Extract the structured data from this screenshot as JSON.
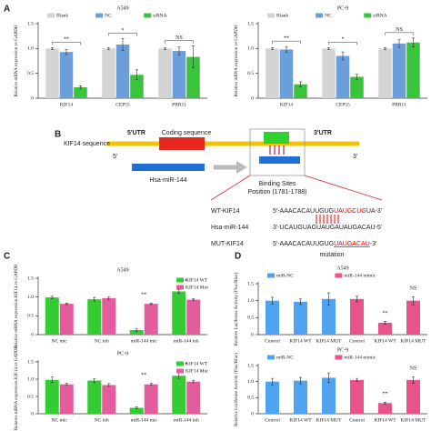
{
  "panel_labels": [
    "A",
    "B",
    "C",
    "D"
  ],
  "chart_data": [
    {
      "type": "bar",
      "title": "A549",
      "ylabel": "Relative mRNA expression vs GAPDH",
      "categories": [
        "KIF14",
        "CEP55",
        "PRR11"
      ],
      "series": [
        {
          "name": "Blank",
          "color": "#d4d4d4",
          "values": [
            1.0,
            1.0,
            1.0
          ],
          "errors": [
            0.02,
            0.02,
            0.02
          ]
        },
        {
          "name": "NC",
          "color": "#6b9fdb",
          "values": [
            0.93,
            1.08,
            0.95
          ],
          "errors": [
            0.05,
            0.12,
            0.08
          ]
        },
        {
          "name": "siRNA",
          "color": "#39c43b",
          "values": [
            0.22,
            0.47,
            0.83
          ],
          "errors": [
            0.03,
            0.1,
            0.22
          ]
        }
      ],
      "annotations": [
        "**",
        "*",
        "NS"
      ],
      "legend": "top",
      "ylim": [
        0,
        1.5
      ],
      "yticks": [
        0,
        0.5,
        {
          "value": 1,
          "label": "1.0"
        },
        1.5
      ]
    },
    {
      "type": "bar",
      "title": "PC-9",
      "ylabel": "Relative mRNA expression vs GAPDH",
      "categories": [
        "KIF14",
        "CEP55",
        "PRR11"
      ],
      "series": [
        {
          "name": "Blank",
          "color": "#d4d4d4",
          "values": [
            1.0,
            1.0,
            1.0
          ],
          "errors": [
            0.02,
            0.02,
            0.02
          ]
        },
        {
          "name": "NC",
          "color": "#6b9fdb",
          "values": [
            0.98,
            0.85,
            1.1
          ],
          "errors": [
            0.06,
            0.08,
            0.08
          ]
        },
        {
          "name": "siRNA",
          "color": "#39c43b",
          "values": [
            0.28,
            0.43,
            1.12
          ],
          "errors": [
            0.05,
            0.05,
            0.09
          ]
        }
      ],
      "annotations": [
        "**",
        "*",
        "NS"
      ],
      "legend": "top",
      "ylim": [
        0,
        1.5
      ],
      "yticks": [
        0,
        0.5,
        {
          "value": 1,
          "label": "1.0"
        },
        1.5
      ]
    },
    {
      "type": "bar",
      "title": "A549",
      "ylabel": "Relative mRNA expression KIF14 vs GAPDH",
      "categories": [
        "NC mic",
        "NC inh",
        "miR-144 mic",
        "miR-144 inh"
      ],
      "series": [
        {
          "name": "KIF14 WT",
          "color": "#33cc33",
          "values": [
            0.99,
            0.94,
            0.12,
            1.15
          ],
          "errors": [
            0.03,
            0.05,
            0.03,
            0.05
          ]
        },
        {
          "name": "KIF14 Mut",
          "color": "#e35d9c",
          "values": [
            0.82,
            0.97,
            0.82,
            0.93
          ],
          "errors": [
            0.02,
            0.04,
            0.02,
            0.03
          ]
        }
      ],
      "annotations": [
        null,
        null,
        "**",
        "*"
      ],
      "legend": "upper right",
      "ylim": [
        0,
        1.5
      ],
      "yticks": [
        0,
        0.5,
        {
          "value": 1,
          "label": "1.0"
        },
        1.5
      ]
    },
    {
      "type": "bar",
      "title": "PC-9",
      "ylabel": "Relative mRNA expression KIF14 vs GAPDH",
      "categories": [
        "NC mic",
        "NC inh",
        "miR-144 mic",
        "miR-144 inh"
      ],
      "series": [
        {
          "name": "KIF14 WT",
          "color": "#33cc33",
          "values": [
            0.98,
            0.96,
            0.17,
            1.1
          ],
          "errors": [
            0.08,
            0.06,
            0.03,
            0.08
          ]
        },
        {
          "name": "KIF14 Mut",
          "color": "#e35d9c",
          "values": [
            0.85,
            0.83,
            0.85,
            0.93
          ],
          "errors": [
            0.03,
            0.04,
            0.03,
            0.04
          ]
        }
      ],
      "annotations": [
        null,
        null,
        "**",
        "*"
      ],
      "legend": "upper right",
      "ylim": [
        0,
        1.5
      ],
      "yticks": [
        0,
        0.5,
        {
          "value": 1,
          "label": "1.0"
        },
        1.5
      ]
    },
    {
      "type": "bar",
      "title": "A549",
      "ylabel": "Relative Luciferase Activity (Fluc/Rluc)",
      "categories": [
        "Control",
        "KIF14 WT",
        "KIF14 MUT",
        "Control",
        "KIF14 WT",
        "KIF14 MUT"
      ],
      "series": [
        {
          "name": "miR-NC",
          "color": "#4fa3ef",
          "values": [
            1.0,
            0.97,
            1.05,
            null,
            null,
            null
          ],
          "errors": [
            0.1,
            0.08,
            0.18,
            null,
            null,
            null
          ]
        },
        {
          "name": "miR-144 mimic",
          "color": "#e8538c",
          "values": [
            null,
            null,
            null,
            1.05,
            0.35,
            1.0
          ],
          "errors": [
            null,
            null,
            null,
            0.08,
            0.04,
            0.12
          ]
        }
      ],
      "annotations": [
        null,
        null,
        null,
        null,
        "**",
        "NS"
      ],
      "legend": "top",
      "ylim": [
        0,
        1.5
      ],
      "yticks": [
        0,
        0.5,
        {
          "value": 1,
          "label": "1.0"
        },
        1.5
      ]
    },
    {
      "type": "bar",
      "title": "PC-9",
      "ylabel": "Relative Luciferase Activity (Fluc/Rluc)",
      "categories": [
        "Control",
        "KIF14 WT",
        "KIF14 MUT",
        "Control",
        "KIF14 WT",
        "KIF14 MUT"
      ],
      "series": [
        {
          "name": "miR-NC",
          "color": "#4fa3ef",
          "values": [
            1.0,
            1.03,
            1.12,
            null,
            null,
            null
          ],
          "errors": [
            0.1,
            0.1,
            0.15,
            null,
            null,
            null
          ]
        },
        {
          "name": "miR-144 mimic",
          "color": "#e8538c",
          "values": [
            null,
            null,
            null,
            1.05,
            0.33,
            1.05
          ],
          "errors": [
            null,
            null,
            null,
            0.05,
            0.03,
            0.1
          ]
        }
      ],
      "annotations": [
        null,
        null,
        null,
        null,
        "**",
        "NS"
      ],
      "legend": "top",
      "ylim": [
        0,
        1.5
      ],
      "yticks": [
        0,
        0.5,
        {
          "value": 1,
          "label": "1.0"
        },
        1.5
      ]
    }
  ],
  "diagram": {
    "utr5": "5'UTR",
    "coding": "Coding sequence",
    "utr3": "3'UTR",
    "sequence_label": "KIF14 sequence",
    "end5": "5'",
    "end3": "3'",
    "mirna": "Hsa-miR-144",
    "binding_sites": "Binding Sites",
    "position": "Position (1781-1788)",
    "rows": [
      {
        "label": "WT-KIF14",
        "parts": [
          "5'-AAACACAUUGUG",
          "UAUGCUG",
          "UA-3'"
        ]
      },
      {
        "label": "Hsa-miR-144",
        "parts": [
          "3'-UCAUGUAGUAUGAUAUGACAU-5'"
        ]
      },
      {
        "label": "MUT-KIF14",
        "parts": [
          "5'-AAACACAUUGUG",
          "UAUGACAU",
          "-3'"
        ]
      }
    ],
    "mutation": "mutation"
  }
}
